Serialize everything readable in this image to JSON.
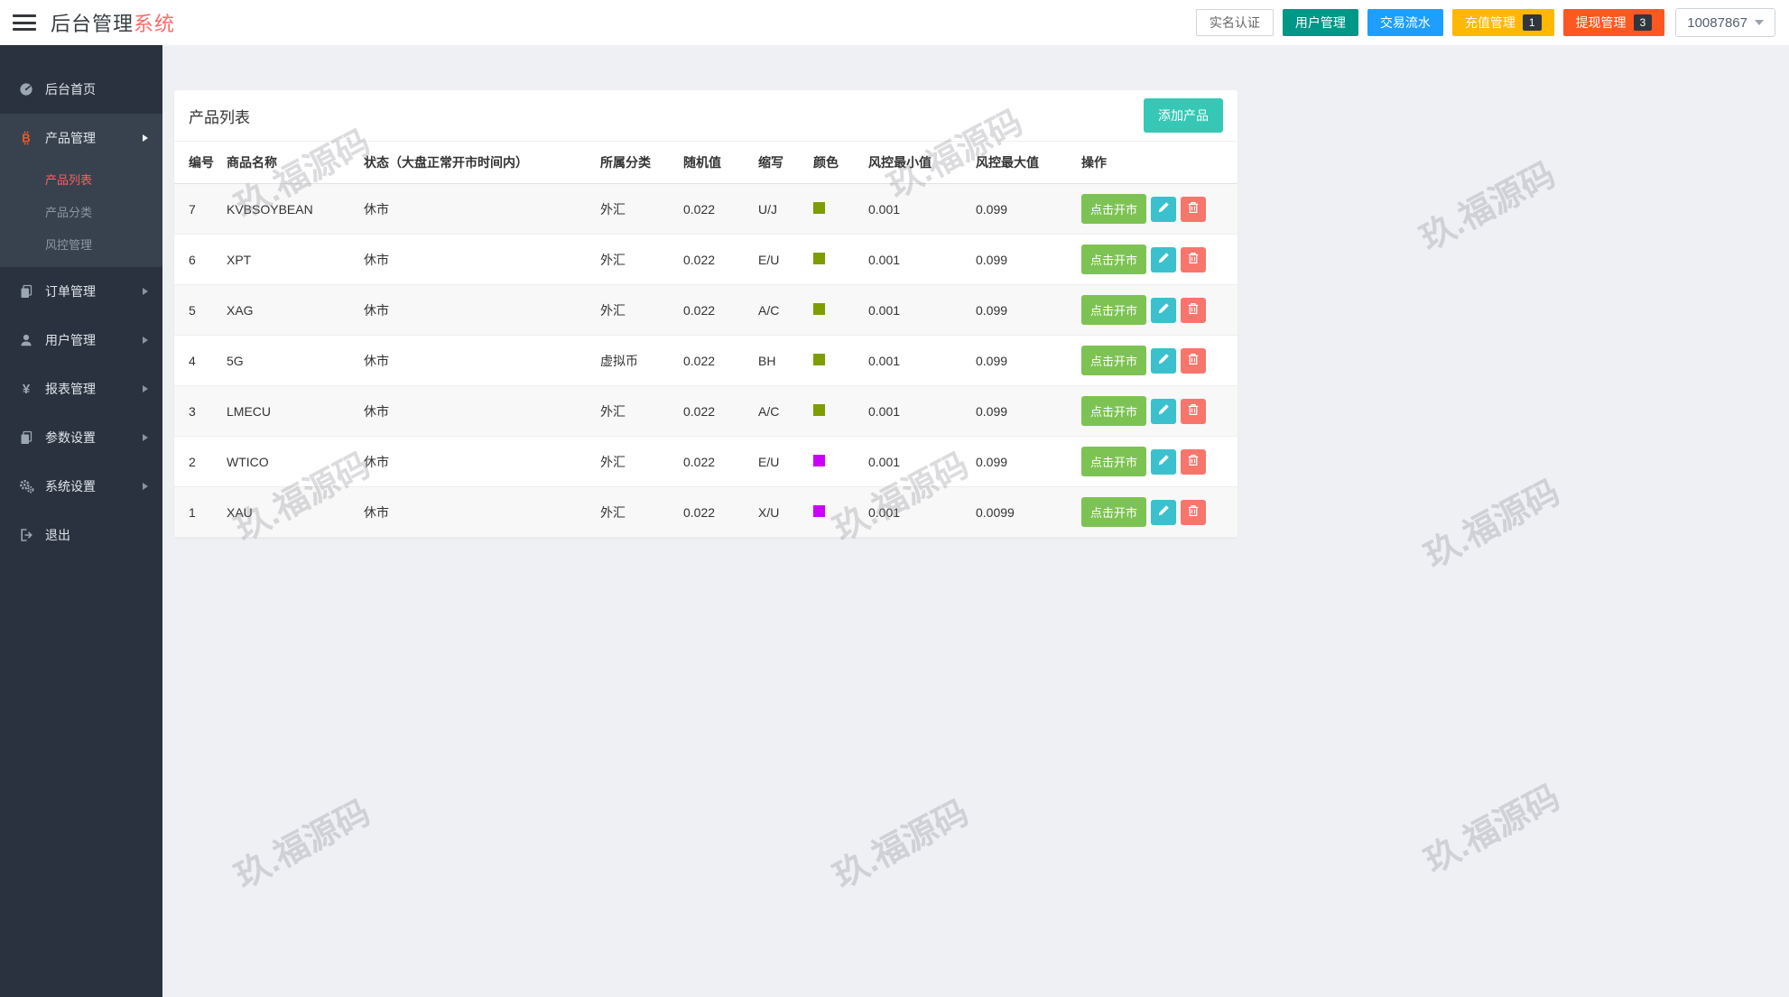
{
  "header": {
    "logo": {
      "dark": "后台管理",
      "accent": "系统"
    },
    "actions": [
      {
        "label": "实名认证"
      },
      {
        "label": "用户管理"
      },
      {
        "label": "交易流水"
      },
      {
        "label": "充值管理",
        "badge": "1"
      },
      {
        "label": "提现管理",
        "badge": "3"
      }
    ],
    "user": {
      "name": "10087867"
    }
  },
  "sidebar": {
    "items": [
      {
        "label": "后台首页"
      },
      {
        "label": "产品管理",
        "children": [
          {
            "label": "产品列表"
          },
          {
            "label": "产品分类"
          },
          {
            "label": "风控管理"
          }
        ]
      },
      {
        "label": "订单管理"
      },
      {
        "label": "用户管理"
      },
      {
        "label": "报表管理"
      },
      {
        "label": "参数设置"
      },
      {
        "label": "系统设置"
      },
      {
        "label": "退出"
      }
    ]
  },
  "main": {
    "card_title": "产品列表",
    "add_button": "添加产品",
    "table": {
      "columns": [
        "编号",
        "商品名称",
        "状态（大盘正常开市时间内）",
        "所属分类",
        "随机值",
        "缩写",
        "颜色",
        "风控最小值",
        "风控最大值",
        "操作"
      ],
      "open_label": "点击开市",
      "rows": [
        {
          "id": "7",
          "name": "KVBSOYBEAN",
          "status": "休市",
          "category": "外汇",
          "random": "0.022",
          "abbr": "U/J",
          "color": "#7d9d01",
          "risk_min": "0.001",
          "risk_max": "0.099"
        },
        {
          "id": "6",
          "name": "XPT",
          "status": "休市",
          "category": "外汇",
          "random": "0.022",
          "abbr": "E/U",
          "color": "#7d9d01",
          "risk_min": "0.001",
          "risk_max": "0.099"
        },
        {
          "id": "5",
          "name": "XAG",
          "status": "休市",
          "category": "外汇",
          "random": "0.022",
          "abbr": "A/C",
          "color": "#7d9d01",
          "risk_min": "0.001",
          "risk_max": "0.099"
        },
        {
          "id": "4",
          "name": "5G",
          "status": "休市",
          "category": "虚拟币",
          "random": "0.022",
          "abbr": "BH",
          "color": "#7d9d01",
          "risk_min": "0.001",
          "risk_max": "0.099"
        },
        {
          "id": "3",
          "name": "LMECU",
          "status": "休市",
          "category": "外汇",
          "random": "0.022",
          "abbr": "A/C",
          "color": "#7d9d01",
          "risk_min": "0.001",
          "risk_max": "0.099"
        },
        {
          "id": "2",
          "name": "WTICO",
          "status": "休市",
          "category": "外汇",
          "random": "0.022",
          "abbr": "E/U",
          "color": "#cb00fb",
          "risk_min": "0.001",
          "risk_max": "0.099"
        },
        {
          "id": "1",
          "name": "XAU",
          "status": "休市",
          "category": "外汇",
          "random": "0.022",
          "abbr": "X/U",
          "color": "#cb00fb",
          "risk_min": "0.001",
          "risk_max": "0.0099"
        }
      ]
    }
  },
  "watermark": {
    "text": "玖.福源码"
  },
  "icons": {
    "yen_glyph": "¥",
    "bitcoin_glyph": "B"
  },
  "colors": {
    "accent_red": "#ff5722",
    "teal": "#009688",
    "blue": "#1e9fff",
    "yellow": "#ffb800",
    "add_button": "#36c8b5",
    "open_button": "#7dc353",
    "edit_button": "#3ac1cd",
    "delete_button": "#f8756c",
    "sidebar_bg": "#2a323f",
    "active_link": "#ff5d5d"
  }
}
